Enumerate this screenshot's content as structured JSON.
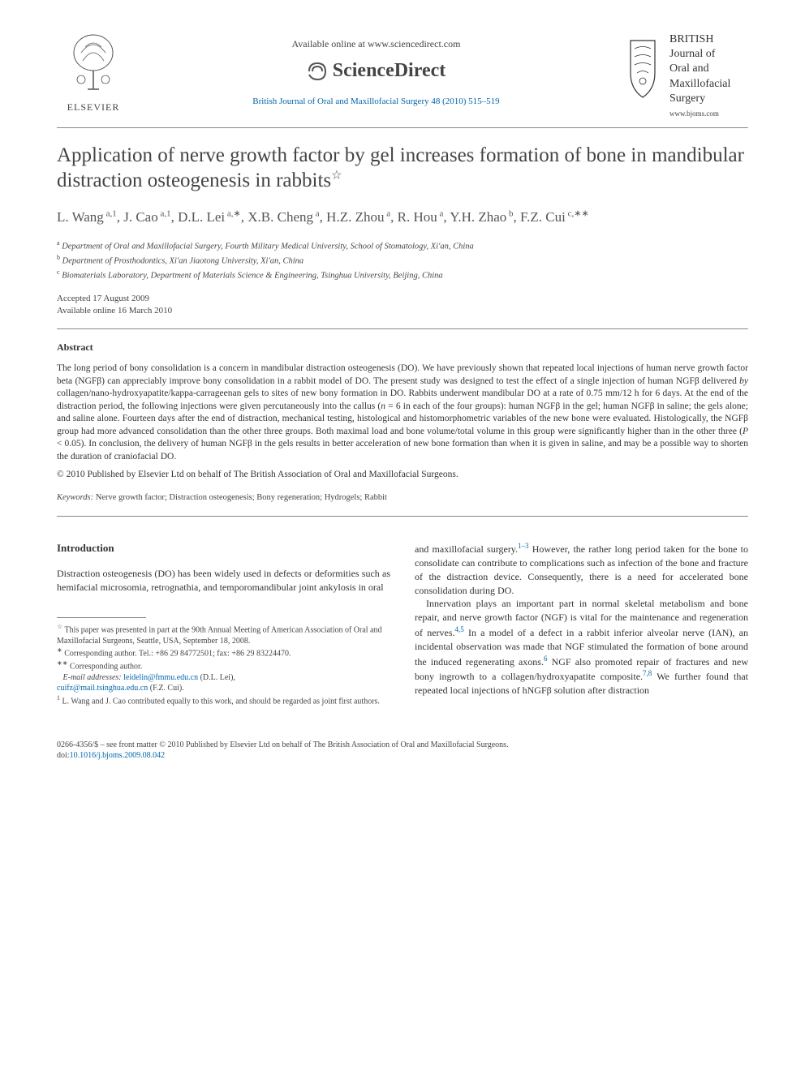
{
  "header": {
    "elsevier_label": "ELSEVIER",
    "available_online": "Available online at www.sciencedirect.com",
    "sciencedirect_label": "ScienceDirect",
    "citation": "British Journal of Oral and Maxillofacial Surgery 48 (2010) 515–519",
    "journal_name_line1": "BRITISH",
    "journal_name_line2": "Journal of",
    "journal_name_line3": "Oral and",
    "journal_name_line4": "Maxillofacial",
    "journal_name_line5": "Surgery",
    "journal_url": "www.bjoms.com"
  },
  "title": "Application of nerve growth factor by gel increases formation of bone in mandibular distraction osteogenesis in rabbits",
  "title_note_symbol": "☆",
  "authors_html": "L. Wang<sup> a,1</sup>, J. Cao<sup> a,1</sup>, D.L. Lei<sup> a,∗</sup>, X.B. Cheng<sup> a</sup>, H.Z. Zhou<sup> a</sup>, R. Hou<sup> a</sup>, Y.H. Zhao<sup> b</sup>, F.Z. Cui<sup> c,∗∗</sup>",
  "affiliations": {
    "a": "Department of Oral and Maxillofacial Surgery, Fourth Military Medical University, School of Stomatology, Xi'an, China",
    "b": "Department of Prosthodontics, Xi'an Jiaotong University, Xi'an, China",
    "c": "Biomaterials Laboratory, Department of Materials Science & Engineering, Tsinghua University, Beijing, China"
  },
  "dates": {
    "accepted": "Accepted 17 August 2009",
    "online": "Available online 16 March 2010"
  },
  "abstract": {
    "heading": "Abstract",
    "body": "The long period of bony consolidation is a concern in mandibular distraction osteogenesis (DO). We have previously shown that repeated local injections of human nerve growth factor beta (NGFβ) can appreciably improve bony consolidation in a rabbit model of DO. The present study was designed to test the effect of a single injection of human NGFβ delivered by collagen/nano-hydroxyapatite/kappa-carrageenan gels to sites of new bony formation in DO. Rabbits underwent mandibular DO at a rate of 0.75 mm/12 h for 6 days. At the end of the distraction period, the following injections were given percutaneously into the callus (n = 6 in each of the four groups): human NGFβ in the gel; human NGFβ in saline; the gels alone; and saline alone. Fourteen days after the end of distraction, mechanical testing, histological and histomorphometric variables of the new bone were evaluated. Histologically, the NGFβ group had more advanced consolidation than the other three groups. Both maximal load and bone volume/total volume in this group were significantly higher than in the other three (P < 0.05). In conclusion, the delivery of human NGFβ in the gels results in better acceleration of new bone formation than when it is given in saline, and may be a possible way to shorten the duration of craniofacial DO.",
    "copyright": "© 2010 Published by Elsevier Ltd on behalf of The British Association of Oral and Maxillofacial Surgeons."
  },
  "keywords": {
    "label": "Keywords:",
    "text": "Nerve growth factor; Distraction osteogenesis; Bony regeneration; Hydrogels; Rabbit"
  },
  "intro": {
    "heading": "Introduction",
    "para1": "Distraction osteogenesis (DO) has been widely used in defects or deformities such as hemifacial microsomia, retrognathia, and temporomandibular joint ankylosis in oral",
    "col2_para1_a": "and maxillofacial surgery.",
    "col2_ref1": "1–3",
    "col2_para1_b": " However, the rather long period taken for the bone to consolidate can contribute to complications such as infection of the bone and fracture of the distraction device. Consequently, there is a need for accelerated bone consolidation during DO.",
    "col2_para2_a": "Innervation plays an important part in normal skeletal metabolism and bone repair, and nerve growth factor (NGF) is vital for the maintenance and regeneration of nerves.",
    "col2_ref2": "4,5",
    "col2_para2_b": " In a model of a defect in a rabbit inferior alveolar nerve (IAN), an incidental observation was made that NGF stimulated the formation of bone around the induced regenerating axons.",
    "col2_ref3": "6",
    "col2_para2_c": " NGF also promoted repair of fractures and new bony ingrowth to a collagen/hydroxyapatite composite.",
    "col2_ref4": "7,8",
    "col2_para2_d": " We further found that repeated local injections of hNGFβ solution after distraction"
  },
  "footnotes": {
    "presented": "This paper was presented in part at the 90th Annual Meeting of American Association of Oral and Maxillofacial Surgeons, Seattle, USA, September 18, 2008.",
    "corr1_label": "Corresponding author. Tel.: +86 29 84772501; fax: +86 29 83224470.",
    "corr2_label": "Corresponding author.",
    "email_label": "E-mail addresses:",
    "email1": "leidelin@fmmu.edu.cn",
    "email1_name": "(D.L. Lei),",
    "email2": "cuifz@mail.tsinghua.edu.cn",
    "email2_name": "(F.Z. Cui).",
    "contrib": "L. Wang and J. Cao contributed equally to this work, and should be regarded as joint first authors."
  },
  "footer": {
    "line1": "0266-4356/$ – see front matter © 2010 Published by Elsevier Ltd on behalf of The British Association of Oral and Maxillofacial Surgeons.",
    "doi_label": "doi:",
    "doi": "10.1016/j.bjoms.2009.08.042"
  },
  "colors": {
    "text": "#333333",
    "link": "#0066aa",
    "rule": "#888888"
  }
}
